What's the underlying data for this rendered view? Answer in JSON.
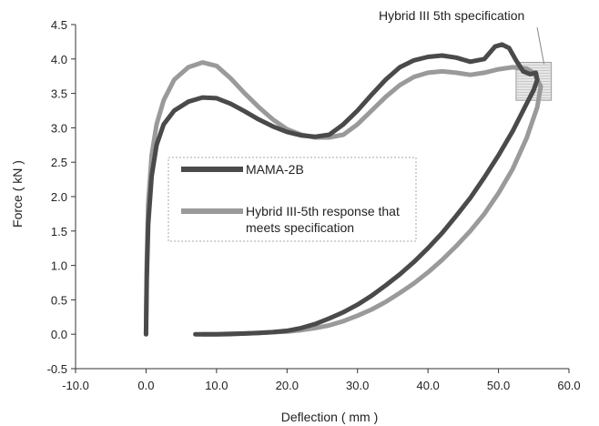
{
  "chart_data": {
    "type": "line",
    "title": "",
    "xlabel": "Deflection ( mm )",
    "ylabel": "Force ( kN )",
    "xlim": [
      -10,
      60
    ],
    "ylim": [
      -0.5,
      4.5
    ],
    "x_ticks": [
      -10,
      0,
      10,
      20,
      30,
      40,
      50,
      60
    ],
    "x_tick_labels": [
      "-10.0",
      "0.0",
      "10.0",
      "20.0",
      "30.0",
      "40.0",
      "50.0",
      "60.0"
    ],
    "y_ticks": [
      -0.5,
      0,
      0.5,
      1,
      1.5,
      2,
      2.5,
      3,
      3.5,
      4,
      4.5
    ],
    "y_tick_labels": [
      "-0.5",
      "0.0",
      "0.5",
      "1.0",
      "1.5",
      "2.0",
      "2.5",
      "3.0",
      "3.5",
      "4.0",
      "4.5"
    ],
    "grid": false,
    "legend_position": "center-left",
    "series": [
      {
        "name": "MAMA-2B",
        "color": "#4a4a4a",
        "x": [
          0,
          0.1,
          0.3,
          0.8,
          1.5,
          2.5,
          4,
          6,
          8,
          10,
          12,
          14,
          16,
          18,
          20,
          22,
          24,
          26,
          28,
          30,
          32,
          34,
          36,
          38,
          40,
          42,
          44,
          46,
          48,
          49.5,
          50.5,
          51.5,
          52.5,
          53.5,
          54.5,
          55.3,
          55.5,
          55,
          54,
          52,
          50,
          48,
          46,
          44,
          42,
          40,
          38,
          36,
          34,
          32,
          30,
          28,
          26,
          24,
          22,
          20,
          18,
          16,
          14,
          12,
          10,
          8,
          7
        ],
        "y": [
          0,
          0.8,
          1.6,
          2.3,
          2.75,
          3.05,
          3.25,
          3.38,
          3.44,
          3.43,
          3.35,
          3.24,
          3.12,
          3.02,
          2.94,
          2.89,
          2.87,
          2.9,
          3.05,
          3.25,
          3.48,
          3.7,
          3.88,
          3.98,
          4.03,
          4.05,
          4.02,
          3.96,
          4.0,
          4.18,
          4.21,
          4.16,
          3.98,
          3.82,
          3.78,
          3.8,
          3.7,
          3.55,
          3.35,
          2.95,
          2.6,
          2.28,
          1.98,
          1.72,
          1.47,
          1.25,
          1.05,
          0.87,
          0.71,
          0.56,
          0.43,
          0.32,
          0.23,
          0.15,
          0.09,
          0.05,
          0.03,
          0.02,
          0.01,
          0.005,
          0.0,
          0.0,
          0.0
        ]
      },
      {
        "name": "Hybrid III-5th response that meets specification",
        "color": "#9a9a9a",
        "x": [
          0,
          0.1,
          0.3,
          0.8,
          1.5,
          2.5,
          4,
          6,
          8,
          10,
          12,
          14,
          16,
          18,
          20,
          22,
          24,
          26,
          28,
          30,
          32,
          34,
          36,
          38,
          40,
          42,
          44,
          46,
          48,
          50,
          52,
          54,
          55,
          56,
          55.5,
          54,
          52,
          50,
          48,
          46,
          44,
          42,
          40,
          38,
          36,
          34,
          32,
          30,
          28,
          26,
          24,
          22,
          20,
          18,
          16,
          14,
          12,
          10,
          8
        ],
        "y": [
          0,
          1.0,
          1.9,
          2.6,
          3.05,
          3.4,
          3.7,
          3.88,
          3.95,
          3.9,
          3.72,
          3.5,
          3.3,
          3.12,
          2.98,
          2.9,
          2.86,
          2.86,
          2.9,
          3.05,
          3.25,
          3.45,
          3.62,
          3.74,
          3.8,
          3.82,
          3.8,
          3.77,
          3.8,
          3.85,
          3.88,
          3.86,
          3.8,
          3.6,
          3.3,
          2.85,
          2.4,
          2.05,
          1.75,
          1.5,
          1.28,
          1.08,
          0.9,
          0.74,
          0.6,
          0.47,
          0.36,
          0.27,
          0.19,
          0.13,
          0.09,
          0.06,
          0.04,
          0.03,
          0.02,
          0.01,
          0.0,
          0.0,
          0.0
        ]
      }
    ],
    "annotations": [
      {
        "text": "Hybrid III 5th specification",
        "target": "specification box",
        "box_x": [
          52.5,
          57.5
        ],
        "box_y": [
          3.4,
          3.95
        ]
      }
    ]
  }
}
